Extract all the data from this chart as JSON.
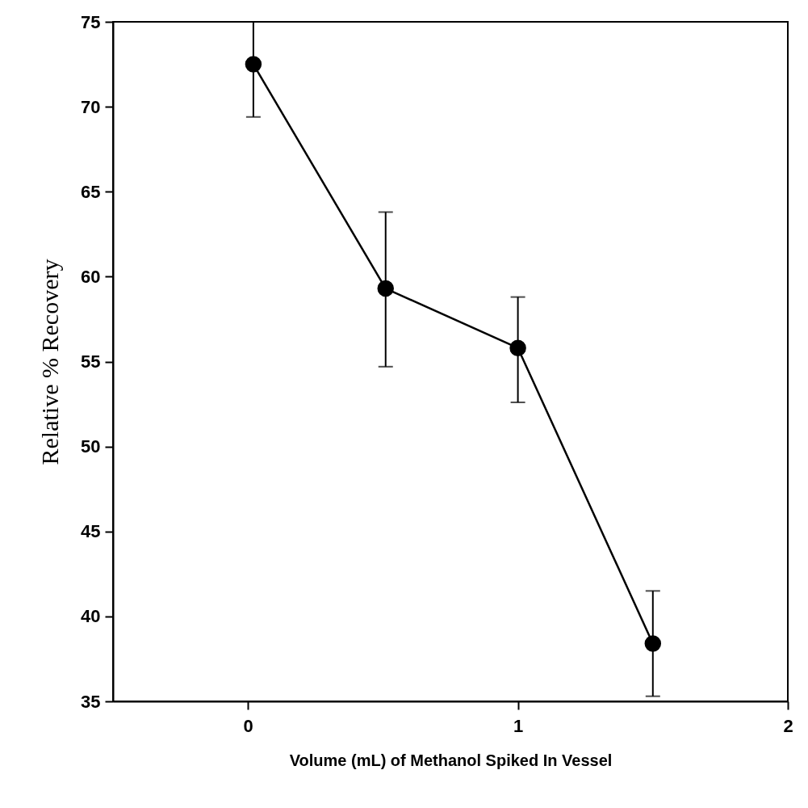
{
  "chart_data": {
    "type": "line",
    "xlabel": "Volume (mL) of Methanol Spiked In Vessel",
    "ylabel": "Relative % Recovery",
    "x": [
      0.02,
      0.51,
      1.0,
      1.5
    ],
    "series": [
      {
        "color": "#000000",
        "values": [
          72.5,
          59.3,
          55.8,
          38.4
        ],
        "errors": [
          [
            69.4,
            75
          ],
          [
            54.7,
            63.8
          ],
          [
            52.6,
            58.8
          ],
          [
            35.3,
            41.5
          ]
        ]
      }
    ],
    "xlim": [
      -0.5,
      2
    ],
    "xticks": [
      0,
      1,
      2
    ],
    "ylim": [
      35,
      75
    ],
    "yticks": [
      35,
      40,
      45,
      50,
      55,
      60,
      65,
      70,
      75
    ],
    "marker": "circle",
    "line_style": "solid",
    "grid": false
  }
}
